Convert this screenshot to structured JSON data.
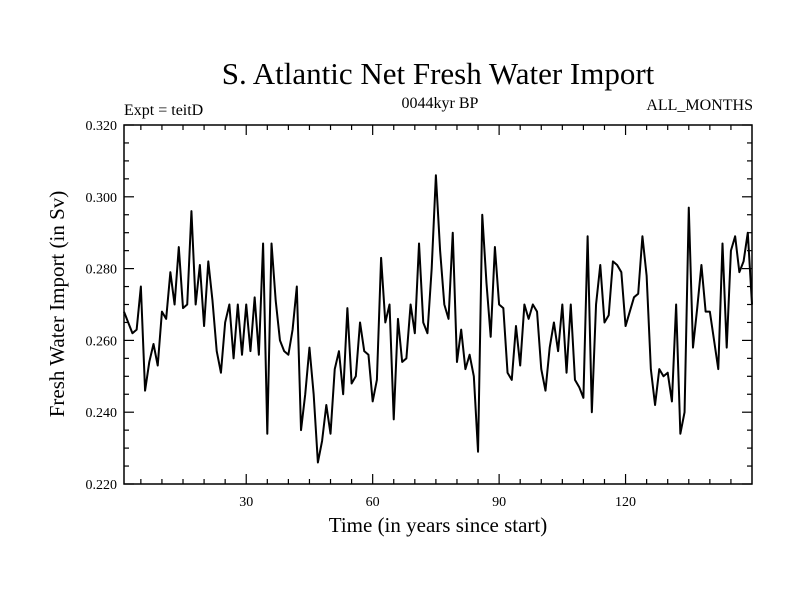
{
  "chart_data": {
    "type": "line",
    "title": "S. Atlantic Net Fresh Water Import",
    "subtitle_left": "Expt = teitD",
    "subtitle_center": "0044kyr BP",
    "subtitle_right": "ALL_MONTHS",
    "xlabel": "Time (in years since start)",
    "ylabel": "Fresh Water Import (in Sv)",
    "xlim": [
      1,
      150
    ],
    "ylim": [
      0.22,
      0.32
    ],
    "x_ticks": [
      30,
      60,
      90,
      120
    ],
    "x_tick_labels": [
      "30",
      "60",
      "90",
      "120"
    ],
    "y_ticks": [
      0.22,
      0.24,
      0.26,
      0.28,
      0.3,
      0.32
    ],
    "y_tick_labels": [
      "0.220",
      "0.240",
      "0.260",
      "0.280",
      "0.300",
      "0.320"
    ],
    "series": [
      {
        "name": "Net Fresh Water Import",
        "color": "#000000",
        "x_start": 1,
        "x_step": 1,
        "values": [
          0.268,
          0.265,
          0.262,
          0.263,
          0.275,
          0.246,
          0.254,
          0.259,
          0.253,
          0.268,
          0.266,
          0.279,
          0.27,
          0.286,
          0.269,
          0.27,
          0.296,
          0.27,
          0.281,
          0.264,
          0.282,
          0.271,
          0.257,
          0.251,
          0.265,
          0.27,
          0.255,
          0.27,
          0.256,
          0.27,
          0.257,
          0.272,
          0.256,
          0.287,
          0.234,
          0.287,
          0.271,
          0.26,
          0.257,
          0.256,
          0.263,
          0.275,
          0.235,
          0.245,
          0.258,
          0.245,
          0.226,
          0.232,
          0.242,
          0.234,
          0.252,
          0.257,
          0.245,
          0.269,
          0.248,
          0.25,
          0.265,
          0.257,
          0.256,
          0.243,
          0.249,
          0.283,
          0.265,
          0.27,
          0.238,
          0.266,
          0.254,
          0.255,
          0.27,
          0.262,
          0.287,
          0.265,
          0.262,
          0.28,
          0.306,
          0.285,
          0.27,
          0.266,
          0.29,
          0.254,
          0.263,
          0.252,
          0.256,
          0.25,
          0.229,
          0.295,
          0.276,
          0.261,
          0.286,
          0.27,
          0.269,
          0.251,
          0.249,
          0.264,
          0.253,
          0.27,
          0.266,
          0.27,
          0.268,
          0.252,
          0.246,
          0.258,
          0.265,
          0.257,
          0.27,
          0.251,
          0.27,
          0.249,
          0.247,
          0.244,
          0.289,
          0.24,
          0.27,
          0.281,
          0.265,
          0.267,
          0.282,
          0.281,
          0.279,
          0.264,
          0.268,
          0.272,
          0.273,
          0.289,
          0.278,
          0.252,
          0.242,
          0.252,
          0.25,
          0.251,
          0.243,
          0.27,
          0.234,
          0.24,
          0.297,
          0.258,
          0.269,
          0.281,
          0.268,
          0.268,
          0.26,
          0.252,
          0.287,
          0.258,
          0.285,
          0.289,
          0.279,
          0.282,
          0.29,
          0.27
        ]
      }
    ]
  }
}
